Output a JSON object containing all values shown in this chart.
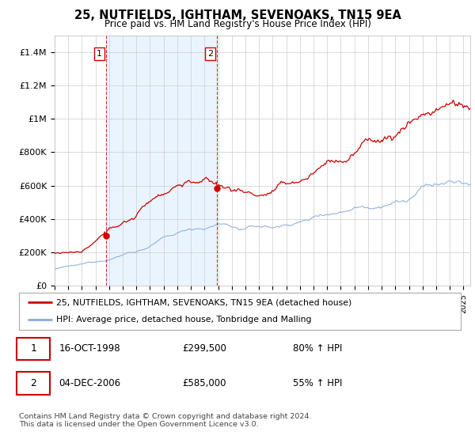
{
  "title": "25, NUTFIELDS, IGHTHAM, SEVENOAKS, TN15 9EA",
  "subtitle": "Price paid vs. HM Land Registry's House Price Index (HPI)",
  "legend_line1": "25, NUTFIELDS, IGHTHAM, SEVENOAKS, TN15 9EA (detached house)",
  "legend_line2": "HPI: Average price, detached house, Tonbridge and Malling",
  "transaction1_date": "16-OCT-1998",
  "transaction1_price": "£299,500",
  "transaction1_hpi": "80% ↑ HPI",
  "transaction2_date": "04-DEC-2006",
  "transaction2_price": "£585,000",
  "transaction2_hpi": "55% ↑ HPI",
  "footer": "Contains HM Land Registry data © Crown copyright and database right 2024.\nThis data is licensed under the Open Government Licence v3.0.",
  "line_color_red": "#cc0000",
  "line_color_blue": "#88aadd",
  "vline_color": "#cc0000",
  "shade_color": "#ddeeff",
  "background_color": "#ffffff",
  "ylim": [
    0,
    1500000
  ],
  "yticks": [
    0,
    200000,
    400000,
    600000,
    800000,
    1000000,
    1200000,
    1400000
  ],
  "ytick_labels": [
    "£0",
    "£200K",
    "£400K",
    "£600K",
    "£800K",
    "£1M",
    "£1.2M",
    "£1.4M"
  ],
  "transaction1_x": 1998.79,
  "transaction2_x": 2006.92,
  "transaction1_y": 299500,
  "transaction2_y": 585000,
  "xmin": 1995.0,
  "xmax": 2025.5
}
